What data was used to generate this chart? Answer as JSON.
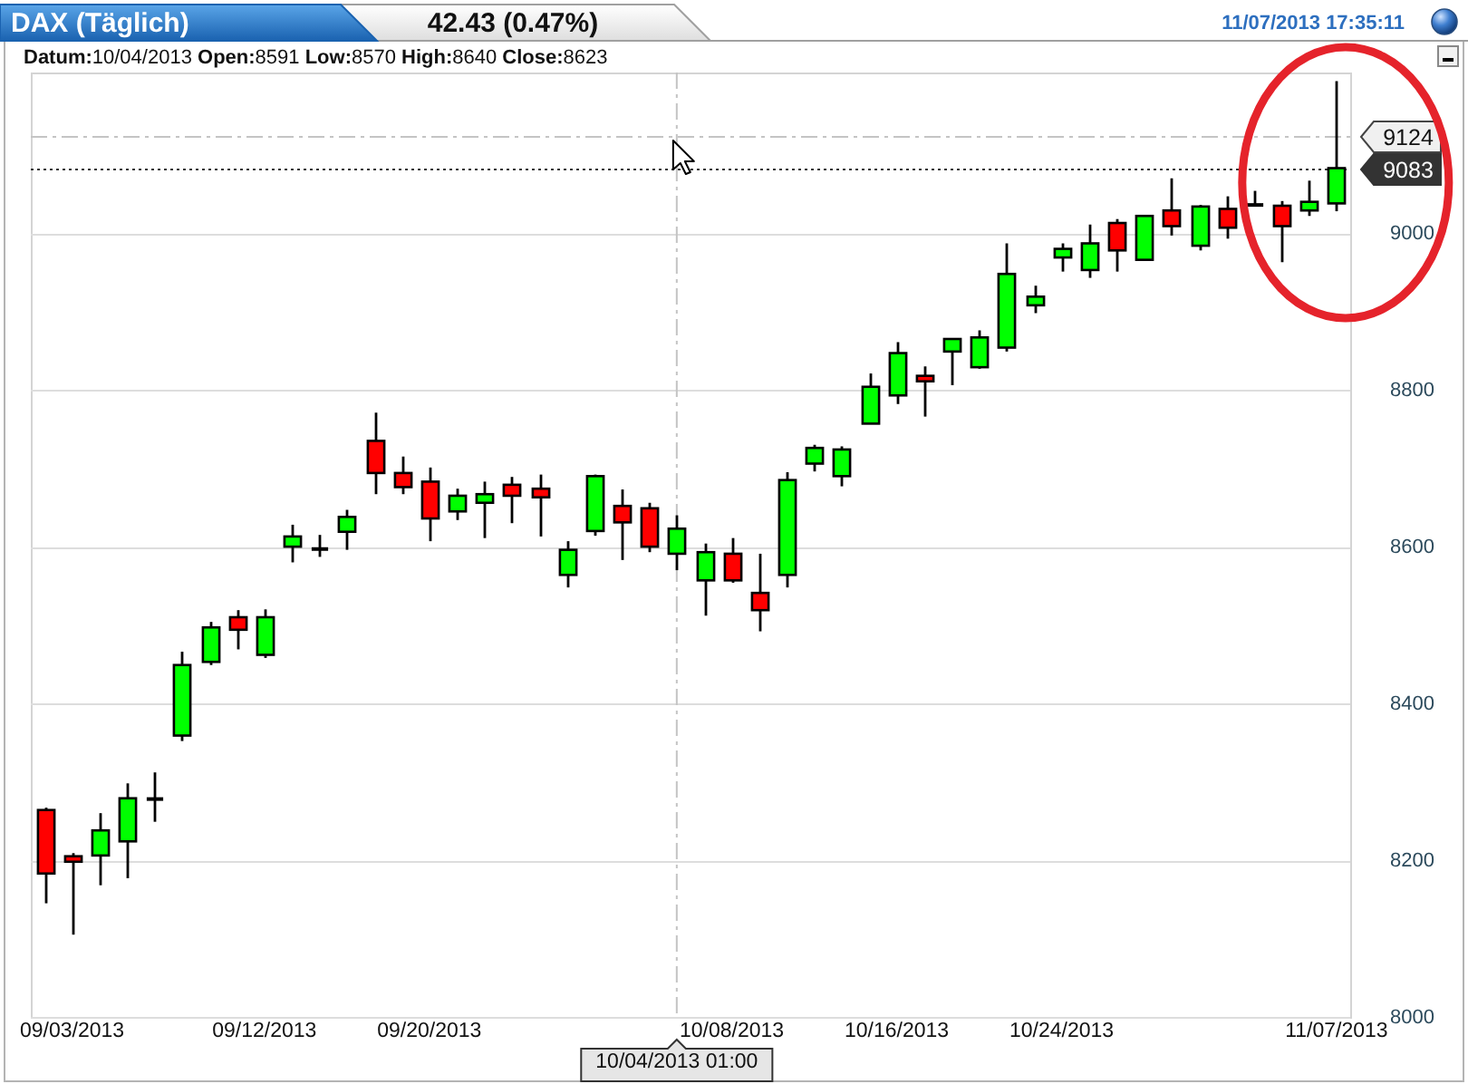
{
  "chart_data": {
    "type": "candlestick",
    "title": "DAX (Täglich)",
    "subtitle": "42.43 (0.47%)",
    "annotations": [
      "11/07/2013 17:35:11",
      "Datum:10/04/2013 Open:8591 Low:8570 High:8640 Close:8623"
    ],
    "categories": [
      null,
      "09/03/2013",
      null,
      null,
      null,
      null,
      null,
      null,
      "09/12/2013",
      null,
      null,
      null,
      null,
      null,
      "09/20/2013",
      null,
      null,
      null,
      null,
      null,
      null,
      null,
      null,
      "10/04/2013 01:00",
      null,
      "10/08/2013",
      null,
      null,
      null,
      null,
      null,
      "10/16/2013",
      null,
      null,
      null,
      null,
      null,
      "10/24/2013",
      null,
      null,
      null,
      null,
      null,
      null,
      null,
      null,
      null,
      "11/07/2013"
    ],
    "ohlc": [
      [
        8264,
        8267,
        8145,
        8183
      ],
      [
        8205,
        8209,
        8105,
        8198
      ],
      [
        8206,
        8260,
        8168,
        8238
      ],
      [
        8224,
        8298,
        8177,
        8279
      ],
      [
        8278,
        8312,
        8249,
        8278
      ],
      [
        8359,
        8466,
        8352,
        8449
      ],
      [
        8453,
        8504,
        8449,
        8497
      ],
      [
        8510,
        8519,
        8469,
        8494
      ],
      [
        8462,
        8520,
        8458,
        8510
      ],
      [
        8600,
        8628,
        8580,
        8613
      ],
      [
        8597,
        8615,
        8587,
        8597
      ],
      [
        8619,
        8647,
        8596,
        8638
      ],
      [
        8735,
        8771,
        8667,
        8694
      ],
      [
        8694,
        8715,
        8667,
        8676
      ],
      [
        8683,
        8701,
        8607,
        8636
      ],
      [
        8645,
        8674,
        8634,
        8665
      ],
      [
        8656,
        8683,
        8611,
        8667
      ],
      [
        8679,
        8689,
        8630,
        8665
      ],
      [
        8674,
        8692,
        8613,
        8663
      ],
      [
        8564,
        8607,
        8548,
        8596
      ],
      [
        8620,
        8692,
        8614,
        8690
      ],
      [
        8652,
        8673,
        8583,
        8631
      ],
      [
        8649,
        8656,
        8593,
        8600
      ],
      [
        8591,
        8640,
        8570,
        8623
      ],
      [
        8557,
        8604,
        8512,
        8593
      ],
      [
        8591,
        8611,
        8554,
        8557
      ],
      [
        8541,
        8591,
        8492,
        8519
      ],
      [
        8564,
        8695,
        8548,
        8685
      ],
      [
        8706,
        8730,
        8696,
        8726
      ],
      [
        8690,
        8728,
        8677,
        8724
      ],
      [
        8757,
        8821,
        8757,
        8804
      ],
      [
        8793,
        8861,
        8782,
        8847
      ],
      [
        8818,
        8830,
        8766,
        8811
      ],
      [
        8849,
        8865,
        8806,
        8865
      ],
      [
        8829,
        8876,
        8827,
        8867
      ],
      [
        8854,
        8987,
        8849,
        8948
      ],
      [
        8908,
        8933,
        8898,
        8919
      ],
      [
        8969,
        8987,
        8951,
        8980
      ],
      [
        8953,
        9011,
        8943,
        8987
      ],
      [
        9013,
        9018,
        8951,
        8978
      ],
      [
        8966,
        9022,
        8966,
        9022
      ],
      [
        9029,
        9070,
        8997,
        9009
      ],
      [
        8984,
        9036,
        8978,
        9034
      ],
      [
        9031,
        9047,
        8993,
        9007
      ],
      [
        9036,
        9054,
        9036,
        9036
      ],
      [
        9035,
        9041,
        8963,
        9009
      ],
      [
        9029,
        9067,
        9022,
        9040
      ],
      [
        9038,
        9194,
        9028,
        9083
      ]
    ],
    "colors": [
      "#ff0000",
      "#ff0000",
      "#00ff00",
      "#00ff00",
      "#000000",
      "#00ff00",
      "#00ff00",
      "#ff0000",
      "#00ff00",
      "#00ff00",
      "#000000",
      "#00ff00",
      "#ff0000",
      "#ff0000",
      "#ff0000",
      "#00ff00",
      "#00ff00",
      "#ff0000",
      "#ff0000",
      "#00ff00",
      "#00ff00",
      "#ff0000",
      "#ff0000",
      "#00ff00",
      "#00ff00",
      "#ff0000",
      "#ff0000",
      "#00ff00",
      "#00ff00",
      "#00ff00",
      "#00ff00",
      "#00ff00",
      "#ff0000",
      "#00ff00",
      "#00ff00",
      "#00ff00",
      "#00ff00",
      "#00ff00",
      "#00ff00",
      "#ff0000",
      "#00ff00",
      "#ff0000",
      "#00ff00",
      "#ff0000",
      "#000000",
      "#ff0000",
      "#00ff00",
      "#00ff00"
    ],
    "ylim": [
      8000,
      9205
    ],
    "yticks": [
      8000,
      8200,
      8400,
      8600,
      8800,
      9000
    ],
    "grid": "y",
    "ref_lines": [
      {
        "axis": "x",
        "value": "10/04/2013 01:00",
        "line_style": "dashed",
        "color": "#c4c4c4"
      },
      {
        "axis": "y",
        "value": 9124,
        "label": "9124",
        "line_style": "dashed",
        "color": "#c4c4c4"
      },
      {
        "axis": "y",
        "value": 9083,
        "label": "9083",
        "line_style": "dotted",
        "color": "#333333"
      }
    ]
  }
}
